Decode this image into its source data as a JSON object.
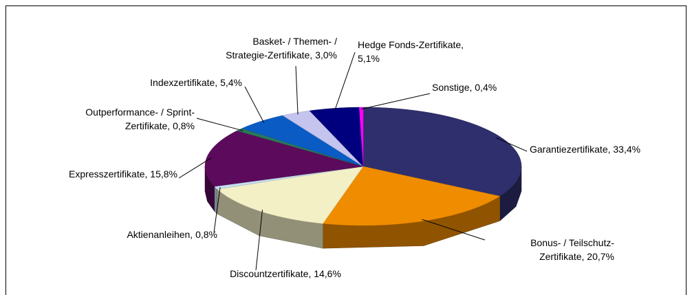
{
  "chart_data": {
    "type": "pie",
    "categories": [
      "Garantiezertifikate, 33,4%",
      "Bonus- / Teilschutz-\nZertifikate, 20,7%",
      "Discountzertifikate, 14,6%",
      "Aktienanleihen, 0,8%",
      "Expresszertifikate, 15,8%",
      "Outperformance- / Sprint-\nZertifikate, 0,8%",
      "Indexzertifikate, 5,4%",
      "Basket- / Themen- /\nStrategie-Zertifikate, 3,0%",
      "Hedge Fonds-Zertifikate,\n5,1%",
      "Sonstige, 0,4%"
    ],
    "values": [
      33.4,
      20.7,
      14.6,
      0.8,
      15.8,
      0.8,
      5.4,
      3.0,
      5.1,
      0.4
    ],
    "colors": [
      "#2f2f6d",
      "#f08c00",
      "#f4f0c6",
      "#c6def0",
      "#5c0b5c",
      "#2a7a5a",
      "#0a5cc4",
      "#c4c4ee",
      "#00007e",
      "#ff00ff"
    ]
  }
}
